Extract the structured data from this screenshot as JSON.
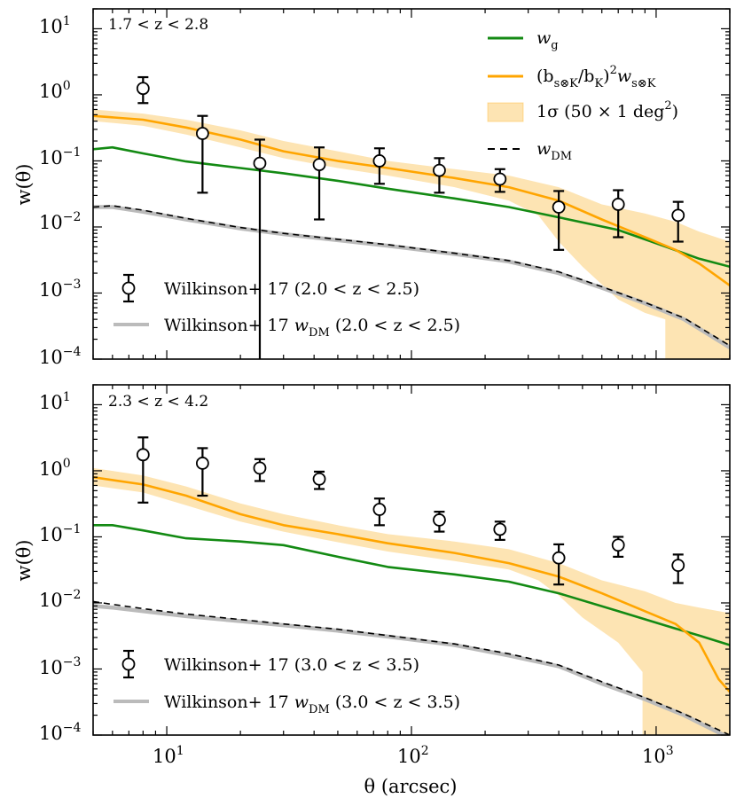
{
  "colors": {
    "wg": "#138a13",
    "model": "#ffa500",
    "band": "#fde4b3",
    "wdm": "#000000",
    "wilk_dm": "#bbbbbb",
    "data": "#000000"
  },
  "shared": {
    "xlabel": "θ (arcsec)",
    "ylabel": "w(θ)",
    "xlim": [
      5,
      2000
    ],
    "ylim": [
      0.0001,
      20
    ],
    "xscale": "log",
    "yscale": "log",
    "xtick_labels": [
      {
        "base": "10",
        "exp": "1"
      },
      {
        "base": "10",
        "exp": "2"
      },
      {
        "base": "10",
        "exp": "3"
      }
    ],
    "ytick_labels": [
      {
        "base": "10",
        "exp": "1"
      },
      {
        "base": "10",
        "exp": "0"
      },
      {
        "base": "10",
        "exp": "−1"
      },
      {
        "base": "10",
        "exp": "−2"
      },
      {
        "base": "10",
        "exp": "−3"
      },
      {
        "base": "10",
        "exp": "−4"
      }
    ]
  },
  "legend": {
    "wg": "w",
    "wg_sub": "g",
    "model": "(b",
    "model_sub1": "s⊗K",
    "model_mid": "/b",
    "model_sub2": "K",
    "model_close": ")",
    "model_sup": "2",
    "model_w": "w",
    "model_sub3": "s⊗K",
    "band": "1σ (50 × 1 deg",
    "band_sup": "2",
    "band_close": ")",
    "wdm": "w",
    "wdm_sub": "DM"
  },
  "chart_data": [
    {
      "type": "line",
      "panel": "top",
      "z_range": "1.7 < z < 2.8",
      "legend_data": "Wilkinson+ 17 (2.0 < z < 2.5)",
      "legend_dm_prefix": "Wilkinson+ 17 ",
      "legend_dm_w": "w",
      "legend_dm_sub": "DM",
      "legend_dm_suffix": " (2.0 < z < 2.5)",
      "series": [
        {
          "name": "wg",
          "x": [
            5,
            6,
            8,
            12,
            20,
            30,
            50,
            80,
            150,
            250,
            400,
            700,
            1100,
            1500,
            2000
          ],
          "values": [
            0.15,
            0.16,
            0.13,
            0.098,
            0.078,
            0.065,
            0.05,
            0.038,
            0.027,
            0.02,
            0.014,
            0.009,
            0.005,
            0.0033,
            0.0025
          ]
        },
        {
          "name": "model",
          "x": [
            5,
            8,
            12,
            20,
            30,
            50,
            80,
            150,
            250,
            400,
            600,
            900,
            1200,
            1500,
            2000
          ],
          "values": [
            0.48,
            0.42,
            0.32,
            0.21,
            0.14,
            0.1,
            0.078,
            0.055,
            0.04,
            0.025,
            0.013,
            0.007,
            0.0045,
            0.0028,
            0.0013
          ]
        },
        {
          "name": "band_upper",
          "x": [
            5,
            8,
            12,
            20,
            30,
            50,
            80,
            150,
            250,
            400,
            600,
            900,
            1200,
            1500,
            2000
          ],
          "values": [
            0.6,
            0.52,
            0.42,
            0.29,
            0.2,
            0.14,
            0.1,
            0.075,
            0.06,
            0.04,
            0.022,
            0.016,
            0.012,
            0.0085,
            0.006
          ]
        },
        {
          "name": "band_lower",
          "x": [
            5,
            8,
            12,
            20,
            30,
            50,
            80,
            150,
            250,
            330,
            400,
            500,
            700,
            900,
            1090
          ],
          "values": [
            0.4,
            0.34,
            0.25,
            0.16,
            0.11,
            0.078,
            0.06,
            0.04,
            0.025,
            0.015,
            0.006,
            0.0025,
            0.0008,
            0.0005,
            0.0004
          ]
        },
        {
          "name": "wilk_dm",
          "x": [
            5,
            6,
            8,
            12,
            20,
            30,
            50,
            80,
            150,
            250,
            400,
            600,
            900,
            1300,
            2000
          ],
          "values": [
            0.02,
            0.02,
            0.017,
            0.013,
            0.0095,
            0.0078,
            0.0063,
            0.0052,
            0.0039,
            0.003,
            0.002,
            0.0012,
            0.0007,
            0.0004,
            0.00015
          ]
        },
        {
          "name": "wdm",
          "x": [
            5,
            6,
            8,
            12,
            20,
            30,
            50,
            80,
            150,
            250,
            400,
            600,
            900,
            1300,
            2000
          ],
          "values": [
            0.02,
            0.021,
            0.018,
            0.0135,
            0.0098,
            0.008,
            0.0065,
            0.0054,
            0.004,
            0.0031,
            0.0021,
            0.00125,
            0.00072,
            0.00042,
            0.00016
          ]
        }
      ],
      "points": [
        {
          "x": 8,
          "y": 1.25,
          "lo": 0.75,
          "hi": 1.85
        },
        {
          "x": 14,
          "y": 0.26,
          "lo": 0.033,
          "hi": 0.48
        },
        {
          "x": 24,
          "y": 0.092,
          "lo": 0.0001,
          "hi": 0.21
        },
        {
          "x": 42,
          "y": 0.088,
          "lo": 0.013,
          "hi": 0.16
        },
        {
          "x": 74,
          "y": 0.1,
          "lo": 0.045,
          "hi": 0.155
        },
        {
          "x": 130,
          "y": 0.072,
          "lo": 0.033,
          "hi": 0.11
        },
        {
          "x": 230,
          "y": 0.053,
          "lo": 0.034,
          "hi": 0.075
        },
        {
          "x": 400,
          "y": 0.02,
          "lo": 0.0045,
          "hi": 0.035
        },
        {
          "x": 700,
          "y": 0.022,
          "lo": 0.007,
          "hi": 0.036
        },
        {
          "x": 1230,
          "y": 0.015,
          "lo": 0.006,
          "hi": 0.024
        }
      ]
    },
    {
      "type": "line",
      "panel": "bottom",
      "z_range": "2.3 < z < 4.2",
      "legend_data": "Wilkinson+ 17 (3.0 < z < 3.5)",
      "legend_dm_prefix": "Wilkinson+ 17 ",
      "legend_dm_w": "w",
      "legend_dm_sub": "DM",
      "legend_dm_suffix": " (3.0 < z < 3.5)",
      "series": [
        {
          "name": "wg",
          "x": [
            5,
            6,
            8,
            12,
            20,
            30,
            50,
            80,
            150,
            250,
            400,
            700,
            1100,
            1500,
            2000
          ],
          "values": [
            0.15,
            0.15,
            0.125,
            0.095,
            0.085,
            0.075,
            0.05,
            0.035,
            0.027,
            0.021,
            0.014,
            0.0075,
            0.0045,
            0.0032,
            0.0023
          ]
        },
        {
          "name": "model",
          "x": [
            5,
            8,
            12,
            20,
            30,
            50,
            80,
            150,
            250,
            400,
            600,
            900,
            1200,
            1500,
            1800,
            2000
          ],
          "values": [
            0.8,
            0.62,
            0.42,
            0.22,
            0.15,
            0.11,
            0.08,
            0.057,
            0.04,
            0.025,
            0.014,
            0.0075,
            0.0048,
            0.0025,
            0.0007,
            0.00045
          ]
        },
        {
          "name": "band_upper",
          "x": [
            5,
            8,
            12,
            20,
            30,
            50,
            80,
            150,
            250,
            400,
            600,
            900,
            1200,
            1500,
            2000
          ],
          "values": [
            1.1,
            0.85,
            0.58,
            0.32,
            0.22,
            0.15,
            0.11,
            0.085,
            0.065,
            0.04,
            0.022,
            0.015,
            0.01,
            0.0085,
            0.007
          ]
        },
        {
          "name": "band_lower",
          "x": [
            5,
            8,
            12,
            20,
            30,
            50,
            80,
            150,
            250,
            330,
            400,
            500,
            700,
            880
          ],
          "values": [
            0.6,
            0.47,
            0.3,
            0.17,
            0.12,
            0.083,
            0.06,
            0.043,
            0.032,
            0.022,
            0.013,
            0.006,
            0.0025,
            0.0009
          ]
        },
        {
          "name": "wilk_dm",
          "x": [
            5,
            6,
            8,
            12,
            20,
            30,
            50,
            80,
            150,
            250,
            400,
            600,
            900,
            1300,
            2000
          ],
          "values": [
            0.009,
            0.0085,
            0.0075,
            0.0063,
            0.0053,
            0.0046,
            0.0038,
            0.0031,
            0.0023,
            0.0016,
            0.0011,
            0.0006,
            0.00035,
            0.0002,
            9e-05
          ]
        },
        {
          "name": "wdm",
          "x": [
            5,
            6,
            8,
            12,
            20,
            30,
            50,
            80,
            150,
            250,
            400,
            600,
            900,
            1300,
            2000
          ],
          "values": [
            0.0105,
            0.0095,
            0.0082,
            0.0068,
            0.0056,
            0.0048,
            0.004,
            0.0032,
            0.0024,
            0.0017,
            0.00115,
            0.00064,
            0.00037,
            0.00021,
            0.0001
          ]
        }
      ],
      "points": [
        {
          "x": 8,
          "y": 1.75,
          "lo": 0.33,
          "hi": 3.2
        },
        {
          "x": 14,
          "y": 1.3,
          "lo": 0.42,
          "hi": 2.2
        },
        {
          "x": 24,
          "y": 1.1,
          "lo": 0.7,
          "hi": 1.5
        },
        {
          "x": 42,
          "y": 0.75,
          "lo": 0.53,
          "hi": 0.97
        },
        {
          "x": 74,
          "y": 0.26,
          "lo": 0.15,
          "hi": 0.38
        },
        {
          "x": 130,
          "y": 0.18,
          "lo": 0.12,
          "hi": 0.24
        },
        {
          "x": 230,
          "y": 0.13,
          "lo": 0.09,
          "hi": 0.17
        },
        {
          "x": 400,
          "y": 0.048,
          "lo": 0.019,
          "hi": 0.077
        },
        {
          "x": 700,
          "y": 0.075,
          "lo": 0.05,
          "hi": 0.1
        },
        {
          "x": 1230,
          "y": 0.037,
          "lo": 0.02,
          "hi": 0.054
        }
      ]
    }
  ]
}
